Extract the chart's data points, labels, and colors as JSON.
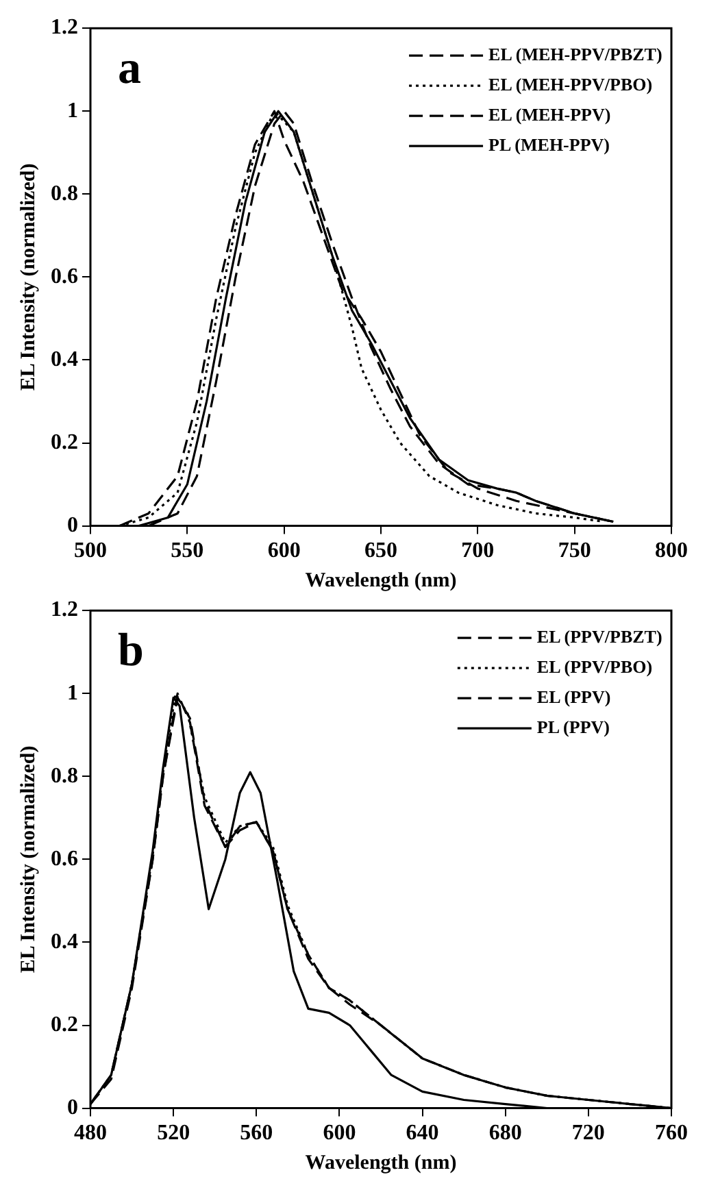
{
  "chart_data": [
    {
      "type": "line",
      "annotations": [
        "a"
      ],
      "xlabel": "Wavelength (nm)",
      "ylabel": "EL Intensity (normalized)",
      "xlim": [
        500,
        800
      ],
      "xticks": [
        500,
        550,
        600,
        650,
        700,
        750,
        800
      ],
      "ylim": [
        0,
        1.2
      ],
      "yticks": [
        0,
        0.2,
        0.4,
        0.6,
        0.8,
        1,
        1.2
      ],
      "grid": false,
      "legend": "top right",
      "marker": "none",
      "series": [
        {
          "name": "EL (MEH-PPV/PBZT)",
          "color": "#000000",
          "line_style": "dashed",
          "x": [
            515,
            530,
            545,
            555,
            565,
            575,
            585,
            595,
            600,
            610,
            620,
            630,
            640,
            650,
            660,
            670,
            685,
            700,
            720,
            740,
            760,
            770
          ],
          "values": [
            0,
            0.03,
            0.12,
            0.3,
            0.55,
            0.75,
            0.92,
            1,
            0.93,
            0.83,
            0.7,
            0.57,
            0.5,
            0.42,
            0.32,
            0.22,
            0.13,
            0.09,
            0.06,
            0.04,
            0.02,
            0.01
          ]
        },
        {
          "name": "EL (MEH-PPV/PBO)",
          "color": "#000000",
          "line_style": "dotted",
          "x": [
            515,
            530,
            545,
            555,
            565,
            575,
            585,
            595,
            605,
            615,
            625,
            635,
            640,
            650,
            660,
            675,
            690,
            710,
            730,
            750,
            765
          ],
          "values": [
            0,
            0.02,
            0.08,
            0.25,
            0.5,
            0.72,
            0.9,
            1,
            0.95,
            0.8,
            0.65,
            0.48,
            0.38,
            0.28,
            0.2,
            0.12,
            0.08,
            0.05,
            0.03,
            0.02,
            0.01
          ]
        },
        {
          "name": "EL (MEH-PPV)",
          "color": "#000000",
          "line_style": "dashed",
          "x": [
            530,
            545,
            555,
            565,
            575,
            585,
            595,
            600,
            605,
            615,
            625,
            635,
            645,
            655,
            665,
            680,
            695,
            710,
            720,
            730,
            750,
            770
          ],
          "values": [
            0,
            0.03,
            0.12,
            0.35,
            0.6,
            0.82,
            0.97,
            1,
            0.97,
            0.82,
            0.68,
            0.55,
            0.43,
            0.33,
            0.24,
            0.15,
            0.1,
            0.09,
            0.08,
            0.06,
            0.03,
            0.01
          ]
        },
        {
          "name": "PL (MEH-PPV)",
          "color": "#000000",
          "line_style": "solid",
          "x": [
            525,
            540,
            550,
            560,
            570,
            580,
            590,
            597,
            605,
            615,
            625,
            635,
            645,
            655,
            665,
            680,
            695,
            710,
            720,
            730,
            750,
            770
          ],
          "values": [
            0,
            0.02,
            0.1,
            0.3,
            0.55,
            0.78,
            0.95,
            1,
            0.95,
            0.8,
            0.65,
            0.52,
            0.44,
            0.35,
            0.26,
            0.16,
            0.11,
            0.09,
            0.08,
            0.06,
            0.03,
            0.01
          ]
        }
      ]
    },
    {
      "type": "line",
      "annotations": [
        "b"
      ],
      "xlabel": "Wavelength (nm)",
      "ylabel": "EL Intensity (normalized)",
      "xlim": [
        480,
        760
      ],
      "xticks": [
        480,
        520,
        560,
        600,
        640,
        680,
        720,
        760
      ],
      "ylim": [
        0,
        1.2
      ],
      "yticks": [
        0,
        0.2,
        0.4,
        0.6,
        0.8,
        1,
        1.2
      ],
      "grid": false,
      "legend": "top right",
      "marker": "none",
      "series": [
        {
          "name": "EL (PPV/PBZT)",
          "color": "#000000",
          "line_style": "dashed",
          "x": [
            480,
            490,
            500,
            510,
            515,
            522,
            528,
            535,
            545,
            552,
            560,
            568,
            575,
            585,
            595,
            605,
            620,
            640,
            660,
            680,
            700,
            720,
            740,
            760
          ],
          "values": [
            0.01,
            0.08,
            0.3,
            0.6,
            0.8,
            1,
            0.93,
            0.73,
            0.63,
            0.68,
            0.69,
            0.62,
            0.48,
            0.37,
            0.29,
            0.26,
            0.2,
            0.12,
            0.08,
            0.05,
            0.03,
            0.02,
            0.01,
            0
          ]
        },
        {
          "name": "EL (PPV/PBO)",
          "color": "#000000",
          "line_style": "dotted",
          "x": [
            480,
            490,
            500,
            510,
            515,
            521,
            527,
            535,
            545,
            552,
            560,
            568,
            575,
            585,
            595,
            605,
            620,
            640,
            660,
            680,
            700,
            720,
            740,
            760
          ],
          "values": [
            0.01,
            0.08,
            0.3,
            0.61,
            0.81,
            1,
            0.95,
            0.75,
            0.64,
            0.68,
            0.69,
            0.63,
            0.49,
            0.37,
            0.29,
            0.26,
            0.2,
            0.12,
            0.08,
            0.05,
            0.03,
            0.02,
            0.01,
            0
          ]
        },
        {
          "name": "EL (PPV)",
          "color": "#000000",
          "line_style": "dashed",
          "x": [
            480,
            490,
            500,
            510,
            515,
            522,
            528,
            535,
            545,
            552,
            560,
            568,
            575,
            585,
            595,
            605,
            620,
            640,
            660,
            680,
            700,
            720,
            740,
            760
          ],
          "values": [
            0.01,
            0.07,
            0.29,
            0.6,
            0.8,
            0.99,
            0.94,
            0.74,
            0.63,
            0.67,
            0.69,
            0.62,
            0.48,
            0.36,
            0.29,
            0.25,
            0.2,
            0.12,
            0.08,
            0.05,
            0.03,
            0.02,
            0.01,
            0
          ]
        },
        {
          "name": "PL (PPV)",
          "color": "#000000",
          "line_style": "solid",
          "x": [
            480,
            490,
            500,
            510,
            515,
            520,
            523,
            530,
            537,
            545,
            552,
            557,
            562,
            570,
            578,
            585,
            595,
            605,
            615,
            625,
            640,
            660,
            680,
            700
          ],
          "values": [
            0.01,
            0.08,
            0.3,
            0.62,
            0.82,
            0.99,
            0.97,
            0.7,
            0.48,
            0.6,
            0.76,
            0.81,
            0.76,
            0.55,
            0.33,
            0.24,
            0.23,
            0.2,
            0.14,
            0.08,
            0.04,
            0.02,
            0.01,
            0
          ]
        }
      ]
    }
  ]
}
